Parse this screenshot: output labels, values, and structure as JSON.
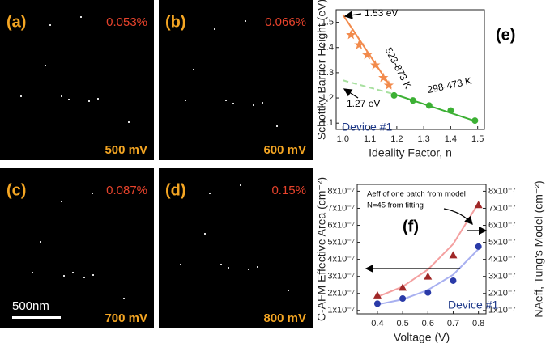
{
  "panels": [
    {
      "label": "(a)",
      "percent": "0.053%",
      "voltage": "500 mV"
    },
    {
      "label": "(b)",
      "percent": "0.066%",
      "voltage": "600 mV"
    },
    {
      "label": "(c)",
      "percent": "0.087%",
      "voltage": "700 mV"
    },
    {
      "label": "(d)",
      "percent": "0.15%",
      "voltage": "800 mV"
    }
  ],
  "scale_bar": "500nm",
  "chart_data": [
    {
      "type": "scatter",
      "label": "(e)",
      "x_label": "Ideality Factor, n",
      "y_label": "Schottky Barrier Height (eV)",
      "xlim": [
        0.975,
        1.525
      ],
      "ylim": [
        1.075,
        1.55
      ],
      "xticks": [
        {
          "value": 1,
          "label": "1.0"
        },
        1.1,
        1.2,
        1.3,
        1.4,
        1.5
      ],
      "yticks": [
        1.1,
        1.2,
        1.3,
        1.4,
        1.5
      ],
      "series": [
        {
          "type": "scatter",
          "marker": "star",
          "color": "#f28a4b",
          "x": [
            1.03,
            1.06,
            1.09,
            1.12,
            1.15,
            1.17
          ],
          "values": [
            1.45,
            1.41,
            1.37,
            1.33,
            1.28,
            1.25
          ]
        },
        {
          "type": "scatter",
          "marker": "circle",
          "color": "#3cb034",
          "x": [
            1.19,
            1.26,
            1.32,
            1.4,
            1.49
          ],
          "values": [
            1.21,
            1.19,
            1.17,
            1.15,
            1.11
          ]
        },
        {
          "type": "line",
          "color": "#f28a4b",
          "x": [
            1.0,
            1.18
          ],
          "values": [
            1.53,
            1.24
          ]
        },
        {
          "type": "line",
          "color": "#3cb034",
          "x": [
            1.19,
            1.5
          ],
          "values": [
            1.215,
            1.105
          ]
        },
        {
          "type": "line",
          "style": "dashed",
          "color": "#a8e0a0",
          "x": [
            1.0,
            1.19
          ],
          "values": [
            1.27,
            1.215
          ]
        }
      ],
      "annotations": [
        "1.53 eV",
        "1.27 eV",
        "523-873 K",
        "298-473 K",
        "Device #1"
      ]
    },
    {
      "type": "scatter",
      "label": "(f)",
      "x_label": "Voltage (V)",
      "y_label": "C-AFM Effective Area (cm⁻²)",
      "y2_label": "NAeff, Tung's Model (cm⁻²)",
      "xlim": [
        0.32,
        0.83
      ],
      "ylim": [
        8e-08,
        8.4e-07
      ],
      "y2lim": [
        8e-08,
        8.4e-07
      ],
      "xticks": [
        0.4,
        0.5,
        0.6,
        0.7,
        0.8
      ],
      "yticks": [
        {
          "value": 1e-07,
          "label": "1x10⁻⁷"
        },
        {
          "value": 2e-07,
          "label": "2x10⁻⁷"
        },
        {
          "value": 3e-07,
          "label": "3x10⁻⁷"
        },
        {
          "value": 4e-07,
          "label": "4x10⁻⁷"
        },
        {
          "value": 5e-07,
          "label": "5x10⁻⁷"
        },
        {
          "value": 6e-07,
          "label": "6x10⁻⁷"
        },
        {
          "value": 7e-07,
          "label": "7x10⁻⁷"
        },
        {
          "value": 8e-07,
          "label": "8x10⁻⁷"
        }
      ],
      "y2ticks": [
        {
          "value": 1e-07,
          "label": "1x10⁻⁷"
        },
        {
          "value": 2e-07,
          "label": "2x10⁻⁷"
        },
        {
          "value": 3e-07,
          "label": "3x10⁻⁷"
        },
        {
          "value": 4e-07,
          "label": "4x10⁻⁷"
        },
        {
          "value": 5e-07,
          "label": "5x10⁻⁷"
        },
        {
          "value": 6e-07,
          "label": "6x10⁻⁷"
        },
        {
          "value": 7e-07,
          "label": "7x10⁻⁷"
        },
        {
          "value": 8e-07,
          "label": "8x10⁻⁷"
        }
      ],
      "series": [
        {
          "type": "line",
          "color": "#a8b0f0",
          "x": [
            0.4,
            0.5,
            0.6,
            0.7,
            0.8
          ],
          "values": [
            1.35e-07,
            1.65e-07,
            2.2e-07,
            3.1e-07,
            4.6e-07
          ]
        },
        {
          "type": "line",
          "color": "#f4a0a0",
          "axis": "y2",
          "x": [
            0.4,
            0.5,
            0.6,
            0.7,
            0.8
          ],
          "values": [
            1.8e-07,
            2.4e-07,
            3.4e-07,
            4.9e-07,
            7.3e-07
          ]
        },
        {
          "type": "scatter",
          "marker": "circle",
          "color": "#2a3aa8",
          "x": [
            0.4,
            0.5,
            0.6,
            0.7,
            0.8
          ],
          "values": [
            1.4e-07,
            1.7e-07,
            2.05e-07,
            2.75e-07,
            4.75e-07
          ]
        },
        {
          "type": "scatter",
          "marker": "triangle",
          "color": "#a02828",
          "axis": "y2",
          "x": [
            0.4,
            0.5,
            0.6,
            0.7,
            0.8
          ],
          "values": [
            1.9e-07,
            2.35e-07,
            3e-07,
            4.25e-07,
            7.2e-07
          ]
        }
      ],
      "annotations": [
        "Aeff of one patch from model",
        "N=45 from fitting",
        "Device #1"
      ]
    }
  ]
}
